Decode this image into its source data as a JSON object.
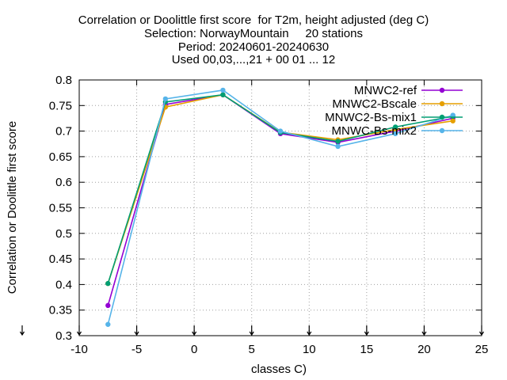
{
  "chart_data": {
    "type": "line",
    "title_lines": [
      "Correlation or Doolittle first score  for T2m, height adjusted (deg C)",
      "Selection: NorwayMountain     20 stations",
      "Period: 20240601-20240630",
      "Used 00,03,...,21 + 00 01 ... 12"
    ],
    "xlabel": "classes C)",
    "ylabel": "Correlation or Doolittle first score",
    "xlim": [
      -10,
      25
    ],
    "ylim": [
      0.3,
      0.8
    ],
    "x_ticks": [
      "-10",
      "-5",
      "0",
      "5",
      "10",
      "15",
      "20",
      "25"
    ],
    "y_ticks": [
      "0.3",
      "0.35",
      "0.4",
      "0.45",
      "0.5",
      "0.55",
      "0.6",
      "0.65",
      "0.7",
      "0.75",
      "0.8"
    ],
    "grid": true,
    "legend_position": "top-right",
    "x": [
      -7.5,
      -2.5,
      2.5,
      7.5,
      12.5,
      17.5,
      22.5
    ],
    "series": [
      {
        "name": "MNWC2-ref",
        "color": "#9400d3",
        "values": [
          0.359,
          0.752,
          0.771,
          0.695,
          0.678,
          0.7,
          0.725
        ]
      },
      {
        "name": "MNWC2-Bscale",
        "color": "#e69f00",
        "values": [
          0.402,
          0.747,
          0.771,
          0.698,
          0.683,
          0.703,
          0.72
        ]
      },
      {
        "name": "MNWC2-Bs-mix1",
        "color": "#009e73",
        "values": [
          0.402,
          0.757,
          0.771,
          0.697,
          0.68,
          0.708,
          0.729
        ]
      },
      {
        "name": "MNWC-Bs-mix2",
        "color": "#56b4e9",
        "values": [
          0.322,
          0.763,
          0.78,
          0.7,
          0.67,
          0.695,
          0.731
        ]
      }
    ]
  }
}
